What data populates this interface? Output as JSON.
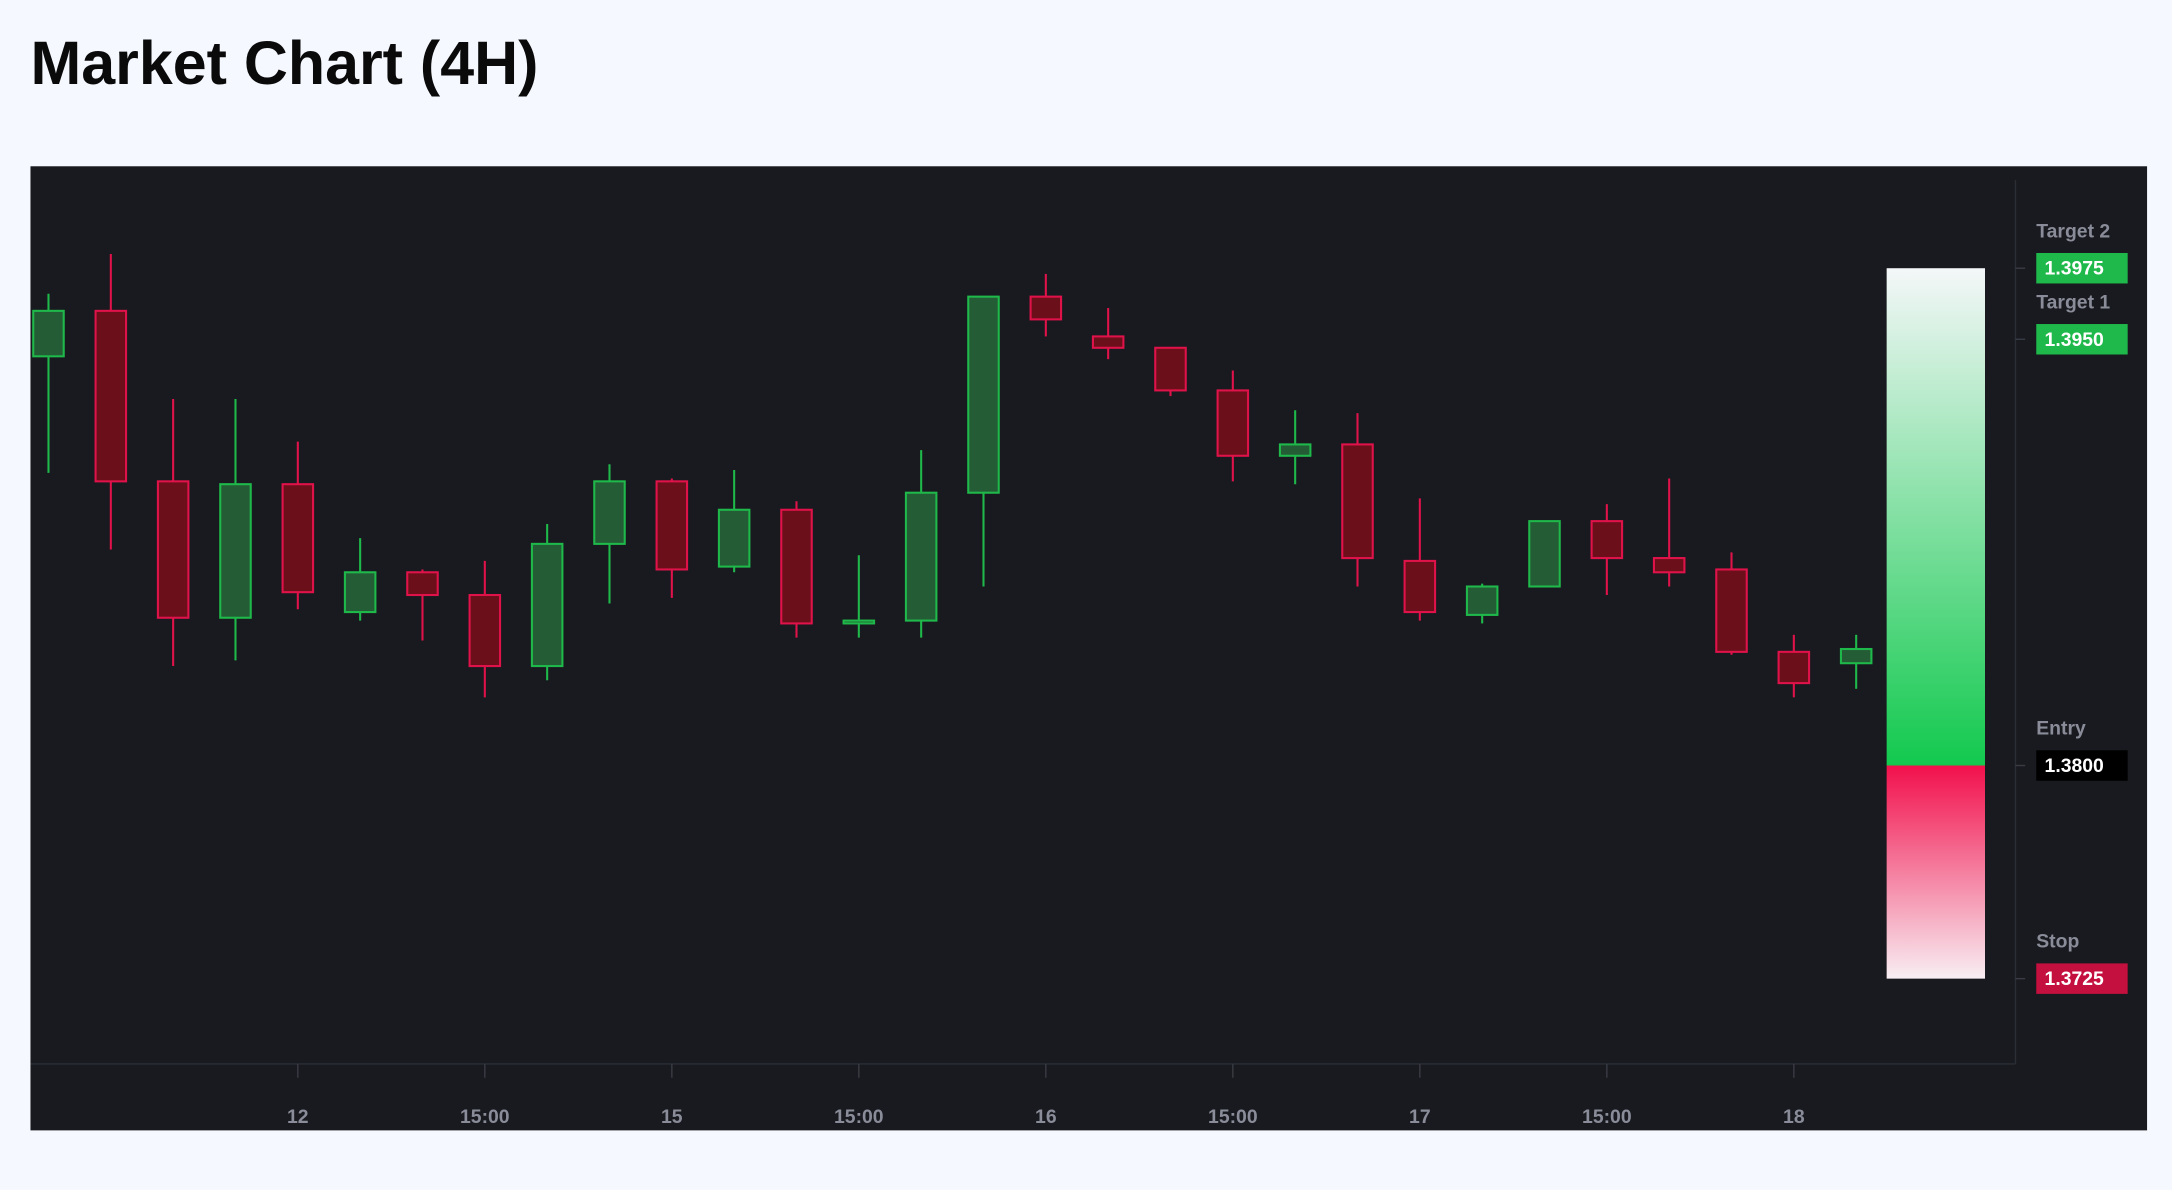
{
  "chart_data": {
    "type": "candlestick",
    "title": "Market Chart (4H)",
    "categories": [
      null,
      null,
      null,
      null,
      "12",
      null,
      null,
      "15:00",
      null,
      null,
      "15",
      null,
      null,
      "15:00",
      null,
      null,
      "16",
      null,
      null,
      "15:00",
      null,
      null,
      "17",
      null,
      null,
      "15:00",
      null,
      null,
      "18",
      null
    ],
    "open": [
      1.3944,
      1.396,
      1.39,
      1.3852,
      1.3899,
      1.3854,
      1.3868,
      1.386,
      1.3835,
      1.3878,
      1.39,
      1.387,
      1.389,
      1.385,
      1.3851,
      1.3896,
      1.3965,
      1.3951,
      1.3947,
      1.3932,
      1.3909,
      1.3913,
      1.3872,
      1.3853,
      1.3863,
      1.3886,
      1.3873,
      1.3869,
      1.384,
      1.3836
    ],
    "high": [
      1.3966,
      1.398,
      1.3929,
      1.3929,
      1.3914,
      1.388,
      1.3869,
      1.3872,
      1.3885,
      1.3906,
      1.3901,
      1.3904,
      1.3893,
      1.3874,
      1.3911,
      1.3965,
      1.3973,
      1.3961,
      1.3947,
      1.3939,
      1.3925,
      1.3924,
      1.3894,
      1.3864,
      1.3886,
      1.3892,
      1.3901,
      1.3875,
      1.3846,
      1.3846
    ],
    "low": [
      1.3903,
      1.3876,
      1.3835,
      1.3837,
      1.3855,
      1.3851,
      1.3844,
      1.3824,
      1.383,
      1.3857,
      1.3859,
      1.3868,
      1.3845,
      1.3845,
      1.3845,
      1.3863,
      1.3951,
      1.3943,
      1.393,
      1.39,
      1.3899,
      1.3863,
      1.3851,
      1.385,
      1.3863,
      1.386,
      1.3863,
      1.3839,
      1.3824,
      1.3827
    ],
    "close": [
      1.396,
      1.39,
      1.3852,
      1.3899,
      1.3861,
      1.3868,
      1.386,
      1.3835,
      1.3878,
      1.39,
      1.3869,
      1.389,
      1.385,
      1.3851,
      1.3896,
      1.3965,
      1.3957,
      1.3947,
      1.3932,
      1.3909,
      1.3913,
      1.3873,
      1.3854,
      1.3863,
      1.3886,
      1.3873,
      1.3868,
      1.384,
      1.3829,
      1.3841
    ],
    "up_color": "#1fb84a",
    "down_color": "#e0124a",
    "ylim": [
      1.3695,
      1.4006
    ],
    "levels": {
      "names": [
        "Target 2",
        "Target 1",
        "Entry",
        "Stop"
      ],
      "values": [
        1.3975,
        1.395,
        1.38,
        1.3725
      ],
      "value_labels": [
        "1.3975",
        "1.3950",
        "1.3800",
        "1.3725"
      ],
      "colors": [
        "#1fb84a",
        "#1fb84a",
        "#000000",
        "#c4103f"
      ]
    }
  }
}
